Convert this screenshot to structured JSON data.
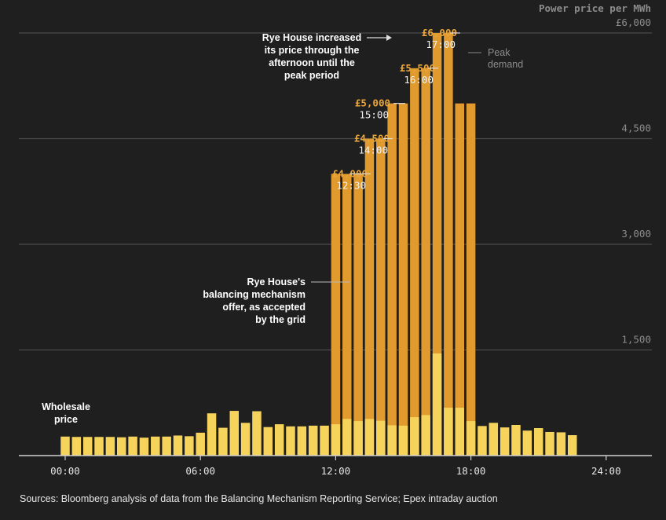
{
  "chart_data": {
    "type": "bar",
    "title": "Power price per MWh",
    "ylim": [
      0,
      6000
    ],
    "y_ticks": [
      {
        "value": 6000,
        "label": "£6,000"
      },
      {
        "value": 4500,
        "label": "4,500"
      },
      {
        "value": 3000,
        "label": "3,000"
      },
      {
        "value": 1500,
        "label": "1,500"
      }
    ],
    "x_ticks": [
      {
        "hour": 0,
        "label": "00:00"
      },
      {
        "hour": 6,
        "label": "06:00"
      },
      {
        "hour": 12,
        "label": "12:00"
      },
      {
        "hour": 18,
        "label": "18:00"
      },
      {
        "hour": 24,
        "label": "24:00"
      }
    ],
    "xlim_hours": [
      -1,
      25
    ],
    "half_hours": [
      0,
      0.5,
      1,
      1.5,
      2,
      2.5,
      3,
      3.5,
      4,
      4.5,
      5,
      5.5,
      6,
      6.5,
      7,
      7.5,
      8,
      8.5,
      9,
      9.5,
      10,
      10.5,
      11,
      11.5,
      12,
      12.5,
      13,
      13.5,
      14,
      14.5,
      15,
      15.5,
      16,
      16.5,
      17,
      17.5,
      18,
      18.5,
      19,
      19.5,
      20,
      20.5,
      21,
      21.5,
      22,
      22.5
    ],
    "series": [
      {
        "name": "Wholesale price",
        "color": "#f6d35a",
        "values": [
          270,
          265,
          265,
          265,
          265,
          260,
          270,
          255,
          270,
          270,
          285,
          275,
          325,
          600,
          395,
          635,
          465,
          630,
          405,
          445,
          415,
          415,
          425,
          425,
          445,
          520,
          490,
          520,
          495,
          430,
          425,
          545,
          575,
          1450,
          680,
          680,
          490,
          420,
          465,
          400,
          435,
          355,
          390,
          335,
          330,
          290
        ]
      },
      {
        "name": "Balancing mechanism offer",
        "color": "#e09a2d",
        "start_index": 24,
        "end_index": 37,
        "values": [
          4000,
          4000,
          4000,
          4500,
          4500,
          5000,
          5000,
          5500,
          5500,
          6000,
          6000,
          5000,
          5000
        ]
      }
    ],
    "annotations": {
      "wholesale": [
        "Wholesale",
        "price"
      ],
      "balancing": [
        "Rye House's",
        "balancing mechanism",
        "offer, as accepted",
        "by the grid"
      ],
      "increase": [
        "Rye House increased",
        "its price through the",
        "afternoon until the",
        "peak period"
      ],
      "peak": [
        "Peak",
        "demand"
      ],
      "callouts": [
        {
          "price": "£4,000",
          "time": "12:30",
          "value": 4000
        },
        {
          "price": "£4,500",
          "time": "14:00",
          "value": 4500
        },
        {
          "price": "£5,000",
          "time": "15:00",
          "value": 5000
        },
        {
          "price": "£5,500",
          "time": "16:00",
          "value": 5500
        },
        {
          "price": "£6,000",
          "time": "17:00",
          "value": 6000
        }
      ]
    },
    "colors": {
      "background": "#1f1f1f",
      "grid": "#4a4a4a",
      "tick_label": "#8c8c8c",
      "accent_label": "#e9a53a"
    }
  },
  "source": "Sources: Bloomberg analysis of data from the Balancing Mechanism Reporting Service; Epex intraday auction"
}
